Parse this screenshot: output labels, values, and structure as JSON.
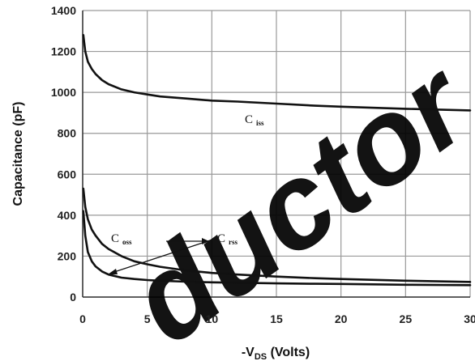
{
  "chart_data": {
    "type": "line",
    "title": "",
    "xlabel": "-V",
    "xlabel_sub": "DS",
    "xlabel_suffix": " (Volts)",
    "ylabel": "Capacitance (pF)",
    "xlim": [
      0,
      30
    ],
    "ylim": [
      0,
      1400
    ],
    "x_ticks": [
      0,
      5,
      10,
      15,
      20,
      25,
      30
    ],
    "y_ticks": [
      0,
      200,
      400,
      600,
      800,
      1000,
      1200,
      1400
    ],
    "grid": true,
    "series": [
      {
        "name": "C",
        "name_sub": "iss",
        "x": [
          0.05,
          0.2,
          0.4,
          0.7,
          1,
          1.5,
          2,
          3,
          4,
          5,
          6,
          8,
          10,
          12,
          15,
          18,
          20,
          25,
          30
        ],
        "y": [
          1280,
          1200,
          1150,
          1115,
          1090,
          1060,
          1040,
          1015,
          1000,
          990,
          980,
          970,
          960,
          955,
          945,
          935,
          930,
          920,
          912
        ]
      },
      {
        "name": "C",
        "name_sub": "oss",
        "x": [
          0.05,
          0.2,
          0.4,
          0.7,
          1,
          1.5,
          2,
          3,
          4,
          5,
          6,
          8,
          10,
          12,
          15,
          18,
          20,
          25,
          30
        ],
        "y": [
          530,
          440,
          380,
          330,
          300,
          260,
          235,
          200,
          175,
          160,
          148,
          130,
          118,
          110,
          100,
          92,
          88,
          80,
          74
        ]
      },
      {
        "name": "C",
        "name_sub": "rss",
        "x": [
          0.05,
          0.2,
          0.4,
          0.7,
          1,
          1.5,
          2,
          3,
          4,
          5,
          6,
          8,
          10,
          12,
          15,
          18,
          20,
          25,
          30
        ],
        "y": [
          420,
          300,
          220,
          175,
          150,
          125,
          110,
          95,
          88,
          83,
          80,
          75,
          72,
          70,
          67,
          65,
          64,
          60,
          58
        ]
      }
    ]
  },
  "watermark": "ductor",
  "colors": {
    "line": "#111111",
    "grid": "#9a9a9a",
    "axis": "#333333"
  }
}
